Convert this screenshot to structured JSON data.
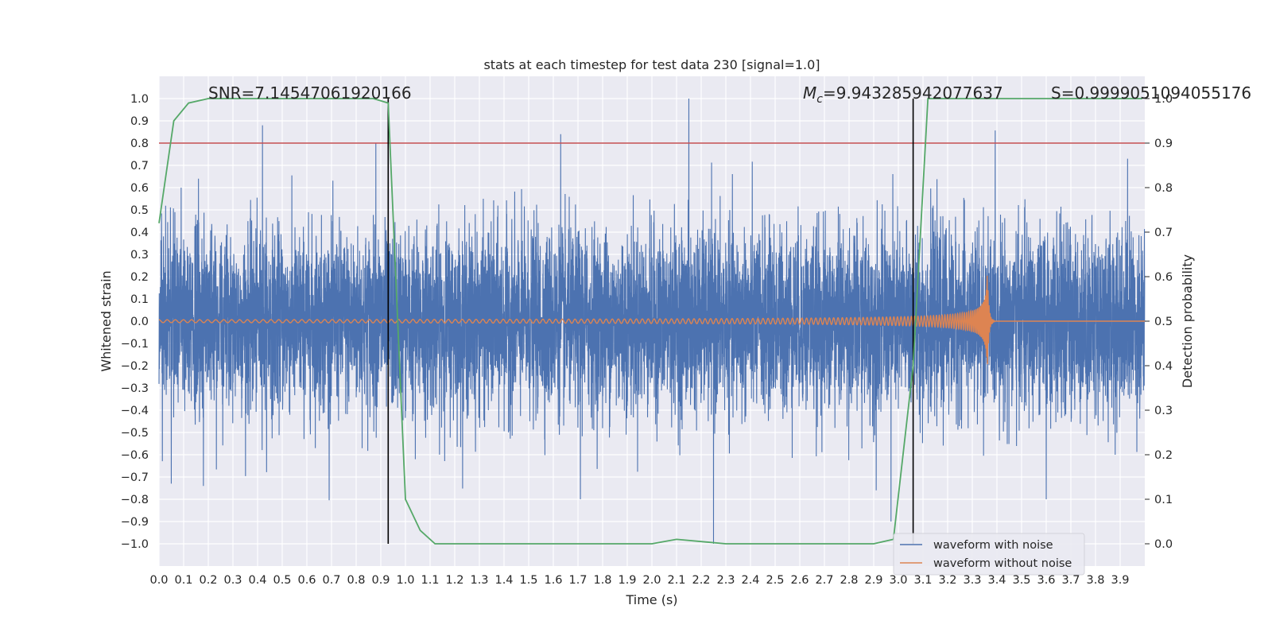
{
  "chart_data": {
    "type": "line",
    "title": "stats at each timestep for test data 230 [signal=1.0]",
    "xlabel": "Time (s)",
    "ylabel": "Whitened strain",
    "y2label": "Detection probability",
    "xlim": [
      0.0,
      4.0
    ],
    "ylim": [
      -1.1,
      1.1
    ],
    "y2lim": [
      -0.05,
      1.05
    ],
    "grid": true,
    "x_ticks": [
      "0.0",
      "0.1",
      "0.2",
      "0.3",
      "0.4",
      "0.5",
      "0.6",
      "0.7",
      "0.8",
      "0.9",
      "1.0",
      "1.1",
      "1.2",
      "1.3",
      "1.4",
      "1.5",
      "1.6",
      "1.7",
      "1.8",
      "1.9",
      "2.0",
      "2.1",
      "2.2",
      "2.3",
      "2.4",
      "2.5",
      "2.6",
      "2.7",
      "2.8",
      "2.9",
      "3.0",
      "3.1",
      "3.2",
      "3.3",
      "3.4",
      "3.5",
      "3.6",
      "3.7",
      "3.8",
      "3.9"
    ],
    "y_ticks": [
      "1.0",
      "0.9",
      "0.8",
      "0.7",
      "0.6",
      "0.5",
      "0.4",
      "0.3",
      "0.2",
      "0.1",
      "0.0",
      "−0.1",
      "−0.2",
      "−0.3",
      "−0.4",
      "−0.5",
      "−0.6",
      "−0.7",
      "−0.8",
      "−0.9",
      "−1.0"
    ],
    "y2_ticks": [
      "1.0",
      "0.9",
      "0.8",
      "0.7",
      "0.6",
      "0.5",
      "0.4",
      "0.3",
      "0.2",
      "0.1",
      "0.0"
    ],
    "annotations": {
      "snr": "SNR=7.14547061920166",
      "mc_symbol": "M",
      "mc_subscript": "c",
      "mc_value": "=9.943285942077637",
      "s": "S=0.9999051094055176"
    },
    "threshold": {
      "axis": "y2",
      "value": 0.9,
      "color": "#c44e52"
    },
    "vertical_lines": [
      0.93,
      3.06
    ],
    "legend": {
      "placement": "lower-right",
      "entries": [
        "waveform with noise",
        "waveform without noise"
      ]
    },
    "series": [
      {
        "name": "waveform with noise",
        "axis": "y",
        "color": "#4c72b0",
        "kind": "noise",
        "sample_rate": 2048,
        "typical_amplitude": 0.2,
        "spikes": [
          {
            "x": 0.05,
            "y": -0.73
          },
          {
            "x": 0.09,
            "y": 0.6
          },
          {
            "x": 0.16,
            "y": 0.64
          },
          {
            "x": 0.18,
            "y": -0.74
          },
          {
            "x": 0.42,
            "y": 0.88
          },
          {
            "x": 0.88,
            "y": 0.8
          },
          {
            "x": 1.04,
            "y": -0.62
          },
          {
            "x": 1.63,
            "y": 0.84
          },
          {
            "x": 1.71,
            "y": -0.8
          },
          {
            "x": 2.15,
            "y": 1.0
          },
          {
            "x": 2.25,
            "y": -1.0
          },
          {
            "x": 2.91,
            "y": -0.76
          },
          {
            "x": 2.97,
            "y": -0.9
          },
          {
            "x": 3.6,
            "y": 0.85
          },
          {
            "x": 3.6,
            "y": -0.8
          },
          {
            "x": 3.93,
            "y": 0.73
          },
          {
            "x": 3.88,
            "y": -0.6
          }
        ]
      },
      {
        "name": "waveform without noise",
        "axis": "y",
        "color": "#dd8452",
        "kind": "chirp",
        "merger_time": 3.36,
        "peak_amplitude": 0.27
      },
      {
        "name": "detection probability",
        "axis": "y2",
        "color": "#55a868",
        "x": [
          0.0,
          0.06,
          0.12,
          0.2,
          0.3,
          0.5,
          0.7,
          0.87,
          0.93,
          1.0,
          1.06,
          1.12,
          1.5,
          2.0,
          2.1,
          2.3,
          2.9,
          2.98,
          3.06,
          3.12,
          3.2,
          3.5,
          3.99
        ],
        "y": [
          0.72,
          0.95,
          0.99,
          1.0,
          1.0,
          1.0,
          1.0,
          1.0,
          0.99,
          0.1,
          0.03,
          0.0,
          0.0,
          0.0,
          0.01,
          0.0,
          0.0,
          0.01,
          0.4,
          1.0,
          1.0,
          1.0,
          1.0
        ]
      }
    ]
  }
}
